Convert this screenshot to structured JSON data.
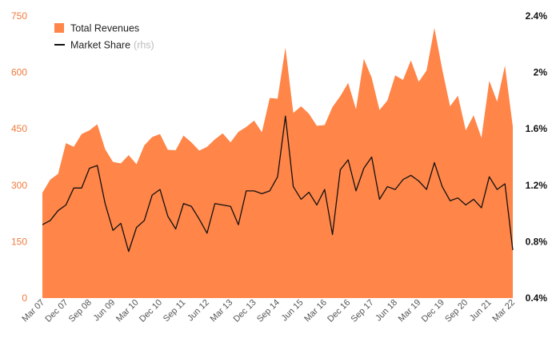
{
  "chart_data": {
    "type": "area",
    "colors": {
      "area": "#FF8548",
      "line": "#111111",
      "left_axis": "#F07A3E",
      "right_axis": "#111111",
      "x_labels": "#555555"
    },
    "grid": false,
    "legend": {
      "placement": "top-left",
      "items": [
        {
          "label": "Total Revenues",
          "note": "",
          "symbol": "square",
          "color": "#FF8548"
        },
        {
          "label": "Market Share",
          "note": "(rhs)",
          "symbol": "line",
          "color": "#111111"
        }
      ]
    },
    "x_tick_labels": [
      "Mar 07",
      "Dec 07",
      "Sep 08",
      "Jun 09",
      "Mar 10",
      "Dec 10",
      "Sep 11",
      "Jun 12",
      "Mar 13",
      "Dec 13",
      "Sep 14",
      "Jun 15",
      "Mar 16",
      "Dec 16",
      "Sep 17",
      "Jun 18",
      "Mar 19",
      "Dec 19",
      "Sep 20",
      "Jun 21",
      "Mar 22"
    ],
    "y_left": {
      "ticks": [
        "0",
        "150",
        "300",
        "450",
        "600",
        "750"
      ],
      "ylim": [
        0,
        750
      ]
    },
    "y_right": {
      "ticks": [
        "0.4%",
        "0.8%",
        "1.2%",
        "1.6%",
        "2%",
        "2.4%"
      ],
      "ylim": [
        0.4,
        2.4
      ]
    },
    "series": [
      {
        "name": "Total Revenues",
        "axis": "left",
        "kind": "area",
        "values": [
          280,
          315,
          330,
          412,
          402,
          436,
          446,
          462,
          396,
          362,
          358,
          380,
          356,
          406,
          428,
          436,
          394,
          393,
          432,
          414,
          392,
          402,
          422,
          438,
          414,
          442,
          455,
          472,
          441,
          532,
          530,
          666,
          492,
          510,
          490,
          458,
          460,
          508,
          537,
          572,
          502,
          636,
          586,
          500,
          525,
          592,
          580,
          632,
          575,
          605,
          718,
          608,
          510,
          538,
          446,
          486,
          426,
          578,
          522,
          618,
          456
        ],
        "ticks_per_label": 3
      },
      {
        "name": "Market Share",
        "axis": "right",
        "kind": "line",
        "values": [
          0.92,
          0.95,
          1.02,
          1.06,
          1.18,
          1.18,
          1.32,
          1.34,
          1.07,
          0.88,
          0.93,
          0.73,
          0.9,
          0.95,
          1.13,
          1.17,
          0.98,
          0.89,
          1.07,
          1.05,
          0.96,
          0.86,
          1.07,
          1.06,
          1.05,
          0.92,
          1.16,
          1.16,
          1.14,
          1.16,
          1.26,
          1.69,
          1.19,
          1.1,
          1.15,
          1.06,
          1.17,
          0.85,
          1.31,
          1.38,
          1.16,
          1.32,
          1.4,
          1.1,
          1.19,
          1.17,
          1.24,
          1.27,
          1.23,
          1.17,
          1.36,
          1.19,
          1.09,
          1.11,
          1.06,
          1.1,
          1.04,
          1.26,
          1.17,
          1.21,
          0.74
        ]
      }
    ]
  }
}
